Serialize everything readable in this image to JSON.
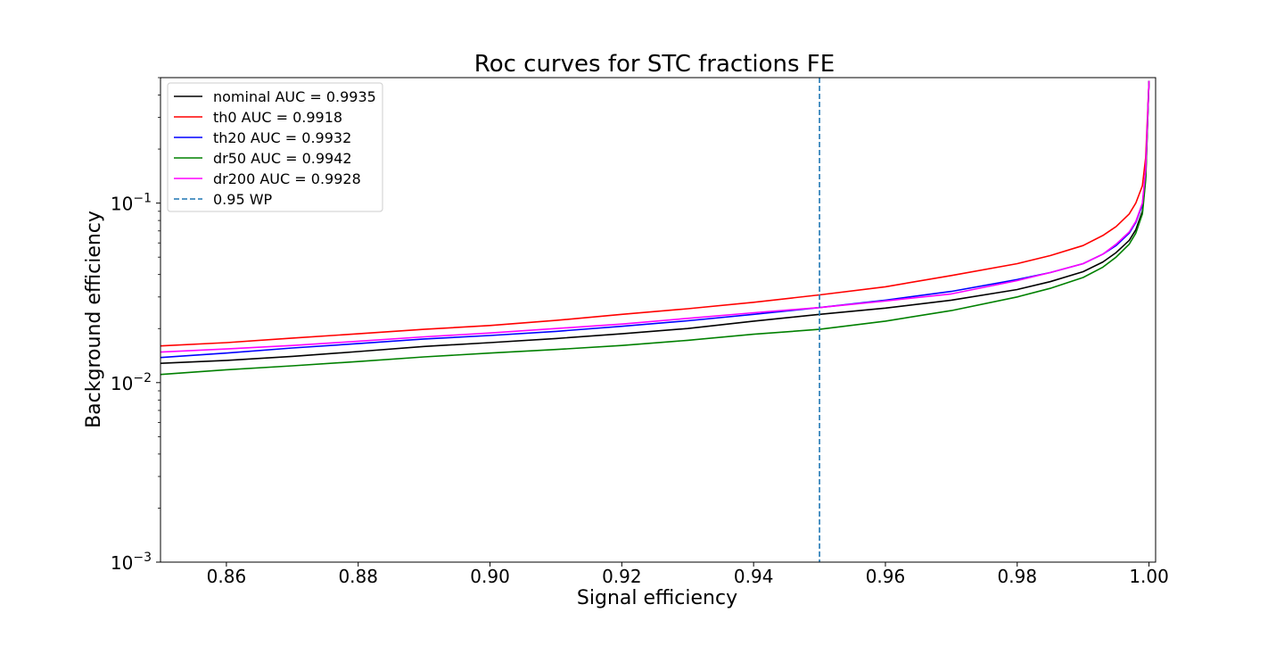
{
  "chart_data": {
    "type": "line",
    "title": "Roc curves for STC fractions FE",
    "xlabel": "Signal efficiency",
    "ylabel": "Background efficiency",
    "xlim": [
      0.85,
      1.001
    ],
    "ylim": [
      0.001,
      0.5
    ],
    "yscale": "log",
    "grid": false,
    "legend_position": "top-left",
    "x_ticks": [
      {
        "value": 0.86,
        "label": "0.86"
      },
      {
        "value": 0.88,
        "label": "0.88"
      },
      {
        "value": 0.9,
        "label": "0.90"
      },
      {
        "value": 0.92,
        "label": "0.92"
      },
      {
        "value": 0.94,
        "label": "0.94"
      },
      {
        "value": 0.96,
        "label": "0.96"
      },
      {
        "value": 0.98,
        "label": "0.98"
      },
      {
        "value": 1.0,
        "label": "1.00"
      }
    ],
    "y_ticks": [
      {
        "value": 0.001,
        "base": "10",
        "exp": "−3"
      },
      {
        "value": 0.01,
        "base": "10",
        "exp": "−2"
      },
      {
        "value": 0.1,
        "base": "10",
        "exp": "−1"
      }
    ],
    "x": [
      0.85,
      0.86,
      0.87,
      0.88,
      0.89,
      0.9,
      0.91,
      0.92,
      0.93,
      0.94,
      0.95,
      0.96,
      0.97,
      0.98,
      0.985,
      0.99,
      0.993,
      0.995,
      0.997,
      0.998,
      0.999,
      0.9995,
      1.0
    ],
    "series": [
      {
        "name": "nominal AUC = 0.9935",
        "color": "#000000",
        "values": [
          0.0128,
          0.0133,
          0.014,
          0.0149,
          0.0159,
          0.0167,
          0.0176,
          0.0187,
          0.02,
          0.022,
          0.024,
          0.026,
          0.0288,
          0.033,
          0.0365,
          0.0415,
          0.047,
          0.053,
          0.062,
          0.071,
          0.09,
          0.14,
          0.48
        ]
      },
      {
        "name": "th0 AUC = 0.9918",
        "color": "#ff0000",
        "values": [
          0.016,
          0.0167,
          0.0177,
          0.0187,
          0.0198,
          0.0208,
          0.0222,
          0.024,
          0.0258,
          0.028,
          0.0308,
          0.0342,
          0.0395,
          0.046,
          0.051,
          0.058,
          0.066,
          0.074,
          0.087,
          0.1,
          0.125,
          0.18,
          0.48
        ]
      },
      {
        "name": "th20 AUC = 0.9932",
        "color": "#0000ff",
        "values": [
          0.0138,
          0.0146,
          0.0156,
          0.0165,
          0.0175,
          0.0183,
          0.0193,
          0.0206,
          0.0221,
          0.024,
          0.0262,
          0.0288,
          0.0322,
          0.0375,
          0.041,
          0.046,
          0.052,
          0.058,
          0.068,
          0.078,
          0.098,
          0.15,
          0.48
        ]
      },
      {
        "name": "dr50 AUC = 0.9942",
        "color": "#008000",
        "values": [
          0.0111,
          0.0118,
          0.0124,
          0.0131,
          0.0139,
          0.0146,
          0.0153,
          0.0161,
          0.0172,
          0.0186,
          0.0198,
          0.022,
          0.0252,
          0.03,
          0.0335,
          0.0385,
          0.044,
          0.05,
          0.059,
          0.068,
          0.087,
          0.135,
          0.48
        ]
      },
      {
        "name": "dr200 AUC = 0.9928",
        "color": "#ff00ff",
        "values": [
          0.0148,
          0.0154,
          0.0161,
          0.017,
          0.018,
          0.0189,
          0.02,
          0.0212,
          0.0228,
          0.0245,
          0.0262,
          0.0285,
          0.0312,
          0.037,
          0.041,
          0.046,
          0.052,
          0.059,
          0.069,
          0.079,
          0.1,
          0.155,
          0.48
        ]
      }
    ],
    "annotations": [
      {
        "type": "vline",
        "x": 0.95,
        "label": "0.95 WP",
        "color": "#1f77b4",
        "style": "dashed"
      }
    ]
  }
}
